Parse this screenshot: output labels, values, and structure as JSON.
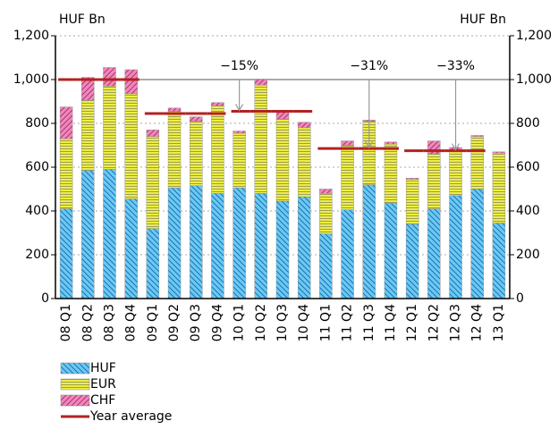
{
  "chart_data": {
    "type": "bar",
    "stacked": true,
    "y_label": "HUF Bn",
    "y2_label": "HUF Bn",
    "categories": [
      "08 Q1",
      "08 Q2",
      "08 Q3",
      "08 Q4",
      "09 Q1",
      "09 Q2",
      "09 Q3",
      "09 Q4",
      "10 Q1",
      "10 Q2",
      "10 Q3",
      "10 Q4",
      "11 Q1",
      "11 Q2",
      "11 Q3",
      "11 Q4",
      "12 Q1",
      "12 Q2",
      "12 Q3",
      "12 Q4",
      "13 Q1"
    ],
    "series": [
      {
        "name": "HUF",
        "color": "#66ccee",
        "values": [
          410,
          585,
          590,
          455,
          320,
          505,
          515,
          480,
          505,
          480,
          445,
          465,
          295,
          405,
          520,
          435,
          340,
          410,
          470,
          500,
          345
        ]
      },
      {
        "name": "EUR",
        "color": "#eeee44",
        "values": [
          320,
          320,
          380,
          480,
          420,
          350,
          295,
          400,
          250,
          495,
          375,
          315,
          185,
          295,
          290,
          270,
          205,
          250,
          210,
          240,
          320
        ]
      },
      {
        "name": "CHF",
        "color": "#ee88bb",
        "values": [
          145,
          105,
          85,
          110,
          30,
          15,
          20,
          15,
          10,
          25,
          30,
          25,
          20,
          20,
          5,
          10,
          5,
          60,
          10,
          5,
          5
        ]
      },
      {
        "name": "Year average",
        "type": "line",
        "color": "#b22222",
        "values": [
          1000,
          1000,
          1000,
          1000,
          845,
          845,
          845,
          845,
          855,
          855,
          855,
          855,
          685,
          685,
          685,
          685,
          675,
          675,
          675,
          675,
          null
        ]
      }
    ],
    "annotations": [
      "−15%",
      "−31%",
      "−33%"
    ],
    "ylim": [
      0,
      1200
    ],
    "yticks": [
      0,
      200,
      400,
      600,
      800,
      {
        "value": 1000,
        "label": "1,000"
      },
      {
        "value": 1200,
        "label": "1,200"
      }
    ],
    "y2lim": [
      0,
      1200
    ],
    "y2ticks": [
      0,
      200,
      400,
      600,
      800,
      {
        "value": 1000,
        "label": "1,000"
      },
      {
        "value": 1200,
        "label": "1,200"
      }
    ],
    "grid": true
  }
}
